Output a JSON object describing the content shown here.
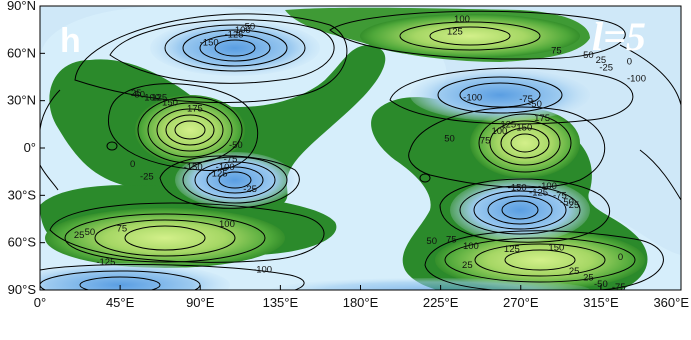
{
  "panel": {
    "letter": "h",
    "degree_label": "l=5"
  },
  "chart_data": {
    "type": "heatmap",
    "x_ticks": [
      "0°",
      "45°E",
      "90°E",
      "135°E",
      "180°E",
      "225°E",
      "270°E",
      "315°E",
      "360°E"
    ],
    "y_ticks": [
      "90°N",
      "60°N",
      "30°N",
      "0°",
      "30°S",
      "60°S",
      "90°S"
    ],
    "xlim": [
      0,
      360
    ],
    "ylim": [
      -90,
      90
    ],
    "colors": {
      "neg_strong": "#5a9ee2",
      "neg_mid": "#9ccaf0",
      "neg_weak": "#cfe8f8",
      "pos_weak": "#1f7a1f",
      "pos_mid": "#4fa83a",
      "pos_strong": "#c8ec7a",
      "contour": "#000000"
    },
    "contour_labels": [
      {
        "value": "-150",
        "lon": 95,
        "lat": 65
      },
      {
        "value": "-125",
        "lon": 109,
        "lat": 70
      },
      {
        "value": "-100",
        "lon": 113,
        "lat": 73
      },
      {
        "value": "-50",
        "lon": 117,
        "lat": 75
      },
      {
        "value": "100",
        "lon": 237,
        "lat": 80
      },
      {
        "value": "125",
        "lon": 233,
        "lat": 72
      },
      {
        "value": "75",
        "lon": 290,
        "lat": 60
      },
      {
        "value": "50",
        "lon": 308,
        "lat": 57
      },
      {
        "value": "25",
        "lon": 315,
        "lat": 54
      },
      {
        "value": "0",
        "lon": 331,
        "lat": 53
      },
      {
        "value": "-25",
        "lon": 318,
        "lat": 49
      },
      {
        "value": "-100",
        "lon": 335,
        "lat": 42
      },
      {
        "value": "-100",
        "lon": 243,
        "lat": 30
      },
      {
        "value": "-75",
        "lon": 273,
        "lat": 29
      },
      {
        "value": "-50",
        "lon": 278,
        "lat": 26
      },
      {
        "value": "175",
        "lon": 87,
        "lat": 23
      },
      {
        "value": "150",
        "lon": 73,
        "lat": 27
      },
      {
        "value": "125",
        "lon": 67,
        "lat": 30
      },
      {
        "value": "100",
        "lon": 63,
        "lat": 30
      },
      {
        "value": "50",
        "lon": 56,
        "lat": 32
      },
      {
        "value": "25",
        "lon": 54,
        "lat": 33
      },
      {
        "value": "175",
        "lon": 282,
        "lat": 17
      },
      {
        "value": "150",
        "lon": 272,
        "lat": 11
      },
      {
        "value": "125",
        "lon": 263,
        "lat": 13
      },
      {
        "value": "100",
        "lon": 258,
        "lat": 9
      },
      {
        "value": "75",
        "lon": 250,
        "lat": 3
      },
      {
        "value": "50",
        "lon": 230,
        "lat": 4
      },
      {
        "value": "-50",
        "lon": 110,
        "lat": 0
      },
      {
        "value": "0",
        "lon": 52,
        "lat": -12
      },
      {
        "value": "-25",
        "lon": 60,
        "lat": -20
      },
      {
        "value": "-150",
        "lon": 86,
        "lat": -14
      },
      {
        "value": "-125",
        "lon": 100,
        "lat": -18
      },
      {
        "value": "-100",
        "lon": 104,
        "lat": -14
      },
      {
        "value": "-75",
        "lon": 107,
        "lat": -9
      },
      {
        "value": "-25",
        "lon": 118,
        "lat": -28
      },
      {
        "value": "-150",
        "lon": 268,
        "lat": -27
      },
      {
        "value": "-125",
        "lon": 280,
        "lat": -30
      },
      {
        "value": "-100",
        "lon": 285,
        "lat": -26
      },
      {
        "value": "-75",
        "lon": 292,
        "lat": -32
      },
      {
        "value": "-50",
        "lon": 296,
        "lat": -36
      },
      {
        "value": "-25",
        "lon": 299,
        "lat": -38
      },
      {
        "value": "100",
        "lon": 105,
        "lat": -50
      },
      {
        "value": "75",
        "lon": 46,
        "lat": -53
      },
      {
        "value": "50",
        "lon": 28,
        "lat": -55
      },
      {
        "value": "25",
        "lon": 22,
        "lat": -57
      },
      {
        "value": "50",
        "lon": 220,
        "lat": -61
      },
      {
        "value": "75",
        "lon": 231,
        "lat": -60
      },
      {
        "value": "100",
        "lon": 242,
        "lat": -64
      },
      {
        "value": "125",
        "lon": 265,
        "lat": -66
      },
      {
        "value": "150",
        "lon": 290,
        "lat": -65
      },
      {
        "value": "0",
        "lon": 326,
        "lat": -71
      },
      {
        "value": "25",
        "lon": 240,
        "lat": -76
      },
      {
        "value": "25",
        "lon": 300,
        "lat": -80
      },
      {
        "value": "25",
        "lon": 308,
        "lat": -84
      },
      {
        "value": "-125",
        "lon": 37,
        "lat": -74
      },
      {
        "value": "-100",
        "lon": 125,
        "lat": -79
      },
      {
        "value": "-50",
        "lon": 315,
        "lat": -88
      },
      {
        "value": "-75",
        "lon": 325,
        "lat": -90
      }
    ]
  }
}
